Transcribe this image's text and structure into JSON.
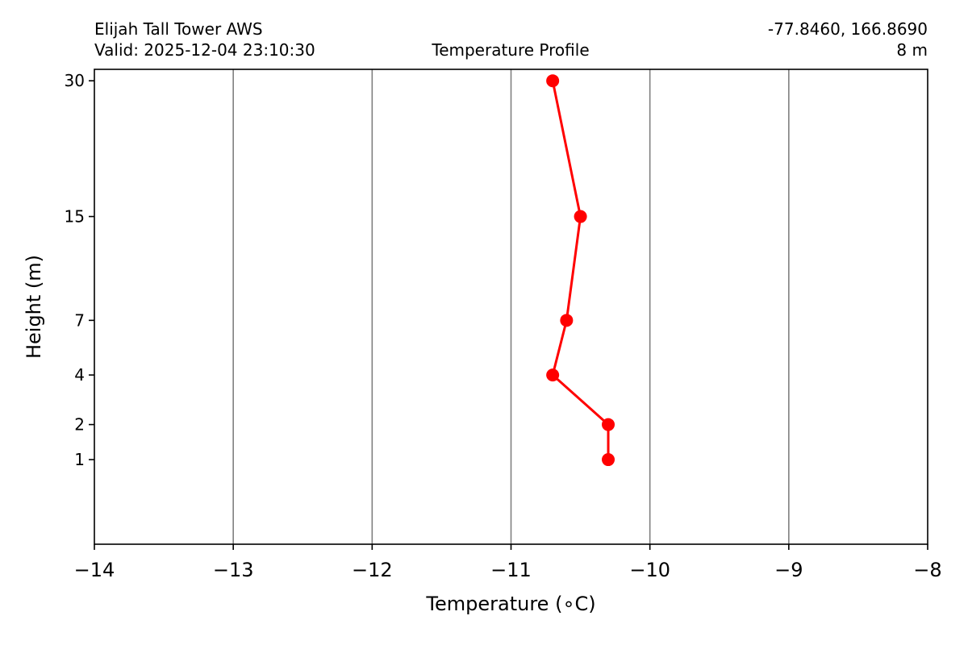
{
  "header": {
    "station": "Elijah Tall Tower AWS",
    "valid": "Valid: 2025-12-04 23:10:30",
    "title": "Temperature Profile",
    "coords": "-77.8460, 166.8690",
    "elevation": "8 m"
  },
  "chart_data": {
    "type": "line",
    "title": "Temperature Profile",
    "xlabel": "Temperature (∘C)",
    "ylabel": "Height (m)",
    "xlim": [
      -14,
      -8
    ],
    "ylim": [
      0,
      31.5
    ],
    "xticks": [
      -14,
      -13,
      -12,
      -11,
      -10,
      -9,
      -8
    ],
    "xtick_labels": [
      "−14",
      "−13",
      "−12",
      "−11",
      "−10",
      "−9",
      "−8"
    ],
    "yticks": [
      1,
      2,
      4,
      7,
      15,
      30
    ],
    "ytick_labels": [
      "1",
      "2",
      "4",
      "7",
      "15",
      "30"
    ],
    "grid": "vertical",
    "y_scale": "sqrt",
    "series": [
      {
        "color": "#ff0000",
        "marker": "circle",
        "points": [
          {
            "x": -10.3,
            "y": 1
          },
          {
            "x": -10.3,
            "y": 2
          },
          {
            "x": -10.7,
            "y": 4
          },
          {
            "x": -10.6,
            "y": 7
          },
          {
            "x": -10.5,
            "y": 15
          },
          {
            "x": -10.7,
            "y": 30
          }
        ]
      }
    ]
  }
}
